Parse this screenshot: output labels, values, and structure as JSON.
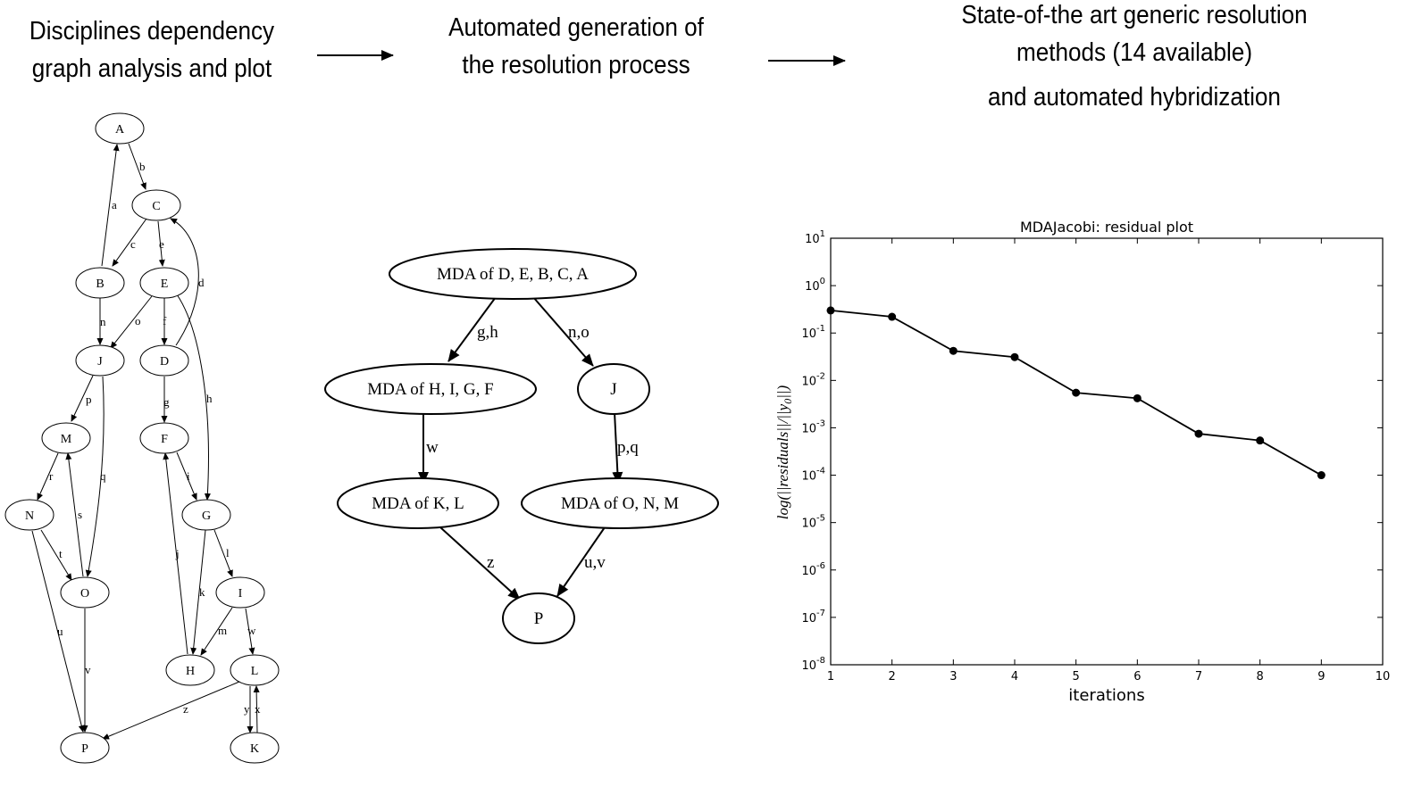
{
  "headers": {
    "step1": [
      "Disciplines dependency",
      "graph analysis and plot"
    ],
    "step2": [
      "Automated generation of",
      "the resolution process"
    ],
    "step3": [
      "State-of-the art generic resolution",
      "methods (14 available)",
      "and automated hybridization"
    ]
  },
  "dependency_graph": {
    "nodes": [
      "A",
      "B",
      "C",
      "D",
      "E",
      "F",
      "G",
      "H",
      "I",
      "J",
      "K",
      "L",
      "M",
      "N",
      "O",
      "P"
    ],
    "edges": [
      {
        "from": "B",
        "to": "A",
        "label": "a"
      },
      {
        "from": "A",
        "to": "C",
        "label": "b"
      },
      {
        "from": "C",
        "to": "B",
        "label": "c"
      },
      {
        "from": "D",
        "to": "C",
        "label": "d"
      },
      {
        "from": "C",
        "to": "E",
        "label": "e"
      },
      {
        "from": "E",
        "to": "D",
        "label": "f"
      },
      {
        "from": "D",
        "to": "F",
        "label": "g"
      },
      {
        "from": "E",
        "to": "G",
        "label": "h"
      },
      {
        "from": "F",
        "to": "G",
        "label": "i"
      },
      {
        "from": "H",
        "to": "F",
        "label": "j"
      },
      {
        "from": "G",
        "to": "H",
        "label": "k"
      },
      {
        "from": "G",
        "to": "I",
        "label": "l"
      },
      {
        "from": "I",
        "to": "H",
        "label": "m"
      },
      {
        "from": "B",
        "to": "J",
        "label": "n"
      },
      {
        "from": "E",
        "to": "J",
        "label": "o"
      },
      {
        "from": "J",
        "to": "M",
        "label": "p"
      },
      {
        "from": "J",
        "to": "O",
        "label": "q"
      },
      {
        "from": "M",
        "to": "N",
        "label": "r"
      },
      {
        "from": "O",
        "to": "M",
        "label": "s"
      },
      {
        "from": "N",
        "to": "O",
        "label": "t"
      },
      {
        "from": "N",
        "to": "P",
        "label": "u"
      },
      {
        "from": "O",
        "to": "P",
        "label": "v"
      },
      {
        "from": "I",
        "to": "L",
        "label": "w"
      },
      {
        "from": "K",
        "to": "L",
        "label": "x"
      },
      {
        "from": "L",
        "to": "K",
        "label": "y"
      },
      {
        "from": "L",
        "to": "P",
        "label": "z"
      }
    ]
  },
  "process_graph": {
    "nodes": [
      "MDA of D, E, B, C, A",
      "MDA of H, I, G, F",
      "J",
      "MDA of K, L",
      "MDA of O, N, M",
      "P"
    ],
    "edges": [
      {
        "from": "MDA of D, E, B, C, A",
        "to": "MDA of H, I, G, F",
        "label": "g,h"
      },
      {
        "from": "MDA of D, E, B, C, A",
        "to": "J",
        "label": "n,o"
      },
      {
        "from": "MDA of H, I, G, F",
        "to": "MDA of K, L",
        "label": "w"
      },
      {
        "from": "J",
        "to": "MDA of O, N, M",
        "label": "p,q"
      },
      {
        "from": "MDA of K, L",
        "to": "P",
        "label": "z"
      },
      {
        "from": "MDA of O, N, M",
        "to": "P",
        "label": "u,v"
      }
    ]
  },
  "chart_data": {
    "type": "line",
    "title": "MDAJacobi: residual plot",
    "xlabel": "iterations",
    "ylabel": "log(||residuals||/||y0||)",
    "x": [
      1,
      2,
      3,
      4,
      5,
      6,
      7,
      8,
      9
    ],
    "y": [
      0.3,
      0.22,
      0.042,
      0.031,
      0.0055,
      0.0042,
      0.00075,
      0.00054,
      0.0001
    ],
    "xlim": [
      1,
      10
    ],
    "ylim": [
      1e-08,
      10
    ],
    "yscale": "log",
    "xticks": [
      "1",
      "2",
      "3",
      "4",
      "5",
      "6",
      "7",
      "8",
      "9",
      "10"
    ],
    "ytick_exponents": [
      "1",
      "0",
      "-1",
      "-2",
      "-3",
      "-4",
      "-5",
      "-6",
      "-7",
      "-8"
    ],
    "ytick_base": "10",
    "grid": false,
    "line_color": "#000000"
  }
}
